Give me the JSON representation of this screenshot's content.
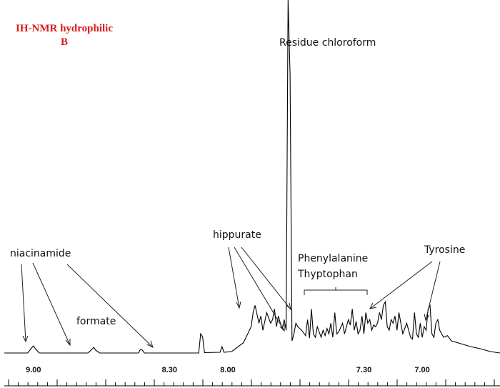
{
  "chart_data": {
    "type": "line",
    "title": "IH-NMR hydrophilic",
    "subtitle": "B",
    "xlabel": "",
    "ylabel": "",
    "x_reversed": true,
    "xlim": [
      9.15,
      6.6
    ],
    "ylim": [
      0,
      100
    ],
    "grid": false,
    "x_ticks": [
      "9.00",
      "8.30",
      "8.00",
      "7.30",
      "7.00"
    ],
    "series": [
      {
        "x": [
          9.15,
          9.03,
          9.01,
          9.0,
          8.99,
          8.97,
          8.72,
          8.7,
          8.69,
          8.68,
          8.66,
          8.46,
          8.45,
          8.44,
          8.43,
          8.15,
          8.14,
          8.13,
          8.12,
          8.04,
          8.03,
          8.02,
          7.98,
          7.92,
          7.88,
          7.87,
          7.86,
          7.84,
          7.83,
          7.82,
          7.8,
          7.78,
          7.77,
          7.76,
          7.75,
          7.74,
          7.73,
          7.72,
          7.71,
          7.7,
          7.69,
          7.68,
          7.67,
          7.66,
          7.65,
          7.64,
          7.62,
          7.6,
          7.59,
          7.58,
          7.57,
          7.56,
          7.55,
          7.54,
          7.52,
          7.51,
          7.5,
          7.49,
          7.48,
          7.47,
          7.46,
          7.45,
          7.44,
          7.43,
          7.41,
          7.4,
          7.38,
          7.37,
          7.36,
          7.35,
          7.34,
          7.33,
          7.32,
          7.31,
          7.3,
          7.29,
          7.28,
          7.27,
          7.26,
          7.25,
          7.24,
          7.23,
          7.22,
          7.21,
          7.2,
          7.19,
          7.18,
          7.17,
          7.16,
          7.15,
          7.14,
          7.13,
          7.12,
          7.1,
          7.08,
          7.06,
          7.05,
          7.04,
          7.03,
          7.02,
          7.01,
          7.0,
          6.99,
          6.98,
          6.97,
          6.96,
          6.95,
          6.94,
          6.93,
          6.92,
          6.91,
          6.89,
          6.87,
          6.85,
          6.8,
          6.75,
          6.7,
          6.65,
          6.6
        ],
        "y": [
          0.6,
          0.6,
          2.0,
          2.6,
          1.8,
          0.6,
          0.6,
          1.6,
          2.2,
          1.4,
          0.6,
          0.6,
          1.6,
          1.4,
          0.6,
          0.6,
          6.0,
          5.2,
          0.7,
          0.8,
          2.4,
          0.8,
          1.0,
          3.5,
          8.0,
          12.0,
          14.0,
          9.0,
          11.0,
          7.0,
          12.0,
          9.0,
          10.0,
          13.0,
          8.0,
          11.0,
          9.0,
          7.5,
          10.0,
          7.0,
          100.0,
          79.0,
          4.0,
          6.0,
          9.0,
          8.0,
          7.0,
          5.5,
          10.0,
          4.8,
          13.0,
          6.0,
          5.0,
          8.0,
          5.0,
          7.0,
          5.5,
          7.5,
          6.0,
          9.0,
          5.0,
          12.0,
          6.0,
          6.5,
          9.0,
          6.0,
          10.0,
          8.5,
          13.0,
          7.0,
          9.5,
          6.0,
          7.0,
          11.0,
          6.0,
          12.0,
          9.0,
          10.0,
          7.0,
          8.5,
          8.0,
          9.0,
          12.0,
          10.0,
          14.0,
          15.0,
          8.0,
          7.0,
          10.0,
          9.0,
          11.0,
          7.0,
          12.0,
          6.0,
          9.0,
          5.0,
          4.5,
          12.0,
          6.0,
          5.0,
          9.0,
          5.0,
          8.0,
          7.0,
          13.0,
          14.0,
          6.0,
          5.0,
          9.0,
          10.0,
          7.0,
          5.0,
          5.5,
          4.0,
          3.2,
          2.4,
          1.8,
          1.0,
          0.6
        ]
      }
    ],
    "annotations": [
      "Residue chloroform",
      "niacinamide",
      "formate",
      "hippurate",
      "Phenylalanine",
      "Thyptophan",
      "Tyrosine"
    ]
  }
}
